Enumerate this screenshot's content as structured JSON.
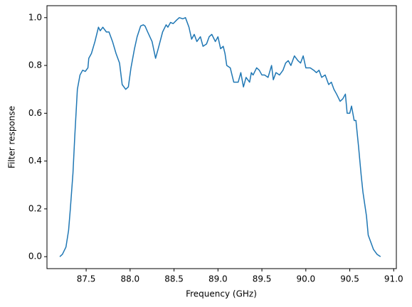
{
  "chart_data": {
    "type": "line",
    "xlabel": "Frequency (GHz)",
    "ylabel": "Filter response",
    "color": "#1f77b4",
    "x": [
      87.2,
      87.23,
      87.27,
      87.3,
      87.32,
      87.35,
      87.37,
      87.4,
      87.43,
      87.46,
      87.49,
      87.52,
      87.53,
      87.56,
      87.6,
      87.64,
      87.66,
      87.69,
      87.73,
      87.76,
      87.8,
      87.84,
      87.88,
      87.91,
      87.95,
      87.98,
      88.01,
      88.05,
      88.08,
      88.12,
      88.15,
      88.17,
      88.2,
      88.25,
      88.29,
      88.32,
      88.37,
      88.41,
      88.43,
      88.46,
      88.49,
      88.53,
      88.56,
      88.6,
      88.63,
      88.67,
      88.7,
      88.73,
      88.76,
      88.8,
      88.83,
      88.87,
      88.9,
      88.93,
      88.97,
      89.0,
      89.03,
      89.06,
      89.08,
      89.1,
      89.14,
      89.18,
      89.23,
      89.26,
      89.29,
      89.32,
      89.36,
      89.38,
      89.4,
      89.44,
      89.47,
      89.5,
      89.53,
      89.57,
      89.61,
      89.63,
      89.66,
      89.7,
      89.74,
      89.77,
      89.8,
      89.83,
      89.87,
      89.91,
      89.94,
      89.97,
      90.0,
      90.05,
      90.09,
      90.12,
      90.15,
      90.18,
      90.22,
      90.26,
      90.29,
      90.32,
      90.35,
      90.39,
      90.42,
      90.45,
      90.47,
      90.5,
      90.52,
      90.55,
      90.57,
      90.6,
      90.63,
      90.65,
      90.69,
      90.71,
      90.74,
      90.77,
      90.81,
      90.85
    ],
    "values": [
      0.0,
      0.01,
      0.04,
      0.11,
      0.2,
      0.35,
      0.5,
      0.7,
      0.76,
      0.78,
      0.775,
      0.79,
      0.83,
      0.85,
      0.9,
      0.96,
      0.945,
      0.96,
      0.94,
      0.94,
      0.9,
      0.85,
      0.81,
      0.72,
      0.7,
      0.71,
      0.79,
      0.87,
      0.92,
      0.965,
      0.97,
      0.965,
      0.94,
      0.9,
      0.83,
      0.87,
      0.94,
      0.97,
      0.96,
      0.98,
      0.975,
      0.99,
      1.0,
      0.995,
      1.0,
      0.96,
      0.91,
      0.93,
      0.9,
      0.92,
      0.88,
      0.89,
      0.92,
      0.93,
      0.9,
      0.92,
      0.87,
      0.88,
      0.85,
      0.8,
      0.79,
      0.73,
      0.73,
      0.77,
      0.71,
      0.75,
      0.73,
      0.77,
      0.76,
      0.79,
      0.78,
      0.76,
      0.76,
      0.75,
      0.8,
      0.74,
      0.77,
      0.76,
      0.78,
      0.81,
      0.82,
      0.8,
      0.84,
      0.82,
      0.81,
      0.84,
      0.79,
      0.79,
      0.78,
      0.77,
      0.78,
      0.75,
      0.76,
      0.72,
      0.73,
      0.7,
      0.68,
      0.65,
      0.66,
      0.68,
      0.6,
      0.6,
      0.63,
      0.57,
      0.57,
      0.46,
      0.34,
      0.27,
      0.17,
      0.09,
      0.06,
      0.03,
      0.01,
      0.0
    ],
    "xlim": [
      87.054,
      91.03
    ],
    "ylim": [
      -0.05,
      1.05
    ],
    "xticks": [
      87.5,
      {
        "value": 88,
        "label": "88.0"
      },
      88.5,
      {
        "value": 89,
        "label": "89.0"
      },
      89.5,
      {
        "value": 90,
        "label": "90.0"
      },
      90.5,
      {
        "value": 91,
        "label": "91.0"
      }
    ],
    "yticks": [
      {
        "value": 0,
        "label": "0.0"
      },
      0.2,
      0.4,
      0.6,
      0.8,
      {
        "value": 1,
        "label": "1.0"
      }
    ]
  }
}
